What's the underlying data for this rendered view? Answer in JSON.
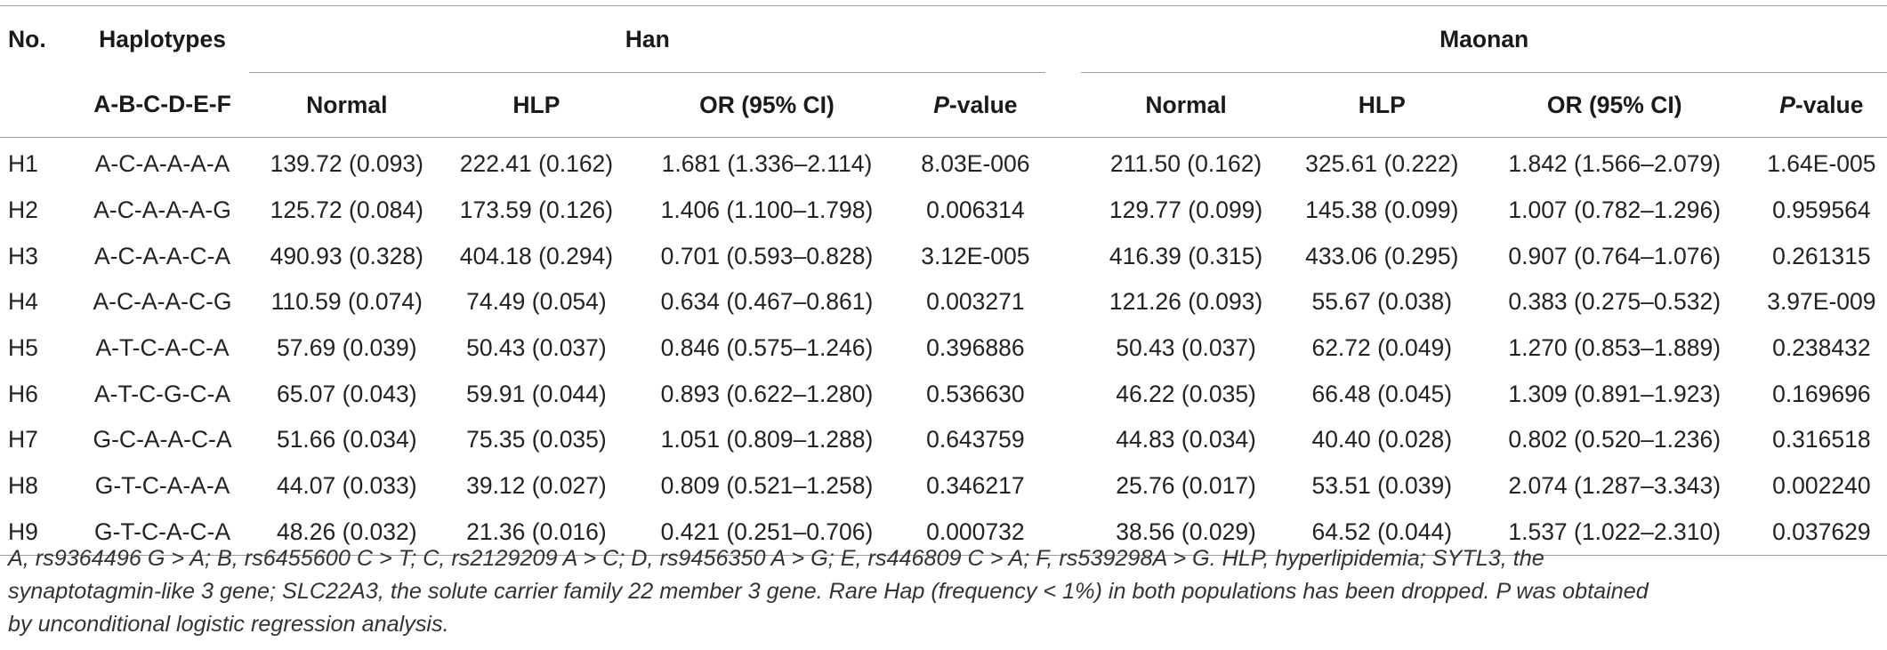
{
  "header": {
    "no_label": "No.",
    "haplotypes_label": "Haplotypes",
    "haplotype_order": "A-B-C-D-E-F",
    "groups": [
      "Han",
      "Maonan"
    ],
    "sub_columns": {
      "normal": "Normal",
      "hlp": "HLP",
      "or": "OR (95% CI)",
      "p_italic": "P",
      "p_rest": "-value"
    }
  },
  "rows": [
    {
      "no": "H1",
      "hap": "A-C-A-A-A-A",
      "han_normal": "139.72 (0.093)",
      "han_hlp": "222.41 (0.162)",
      "han_or": "1.681 (1.336–2.114)",
      "han_p": "8.03E-006",
      "mao_normal": "211.50 (0.162)",
      "mao_hlp": "325.61 (0.222)",
      "mao_or": "1.842 (1.566–2.079)",
      "mao_p": "1.64E-005"
    },
    {
      "no": "H2",
      "hap": "A-C-A-A-A-G",
      "han_normal": "125.72 (0.084)",
      "han_hlp": "173.59 (0.126)",
      "han_or": "1.406 (1.100–1.798)",
      "han_p": "0.006314",
      "mao_normal": "129.77 (0.099)",
      "mao_hlp": "145.38 (0.099)",
      "mao_or": "1.007 (0.782–1.296)",
      "mao_p": "0.959564"
    },
    {
      "no": "H3",
      "hap": "A-C-A-A-C-A",
      "han_normal": "490.93 (0.328)",
      "han_hlp": "404.18 (0.294)",
      "han_or": "0.701 (0.593–0.828)",
      "han_p": "3.12E-005",
      "mao_normal": "416.39 (0.315)",
      "mao_hlp": "433.06 (0.295)",
      "mao_or": "0.907 (0.764–1.076)",
      "mao_p": "0.261315"
    },
    {
      "no": "H4",
      "hap": "A-C-A-A-C-G",
      "han_normal": "110.59 (0.074)",
      "han_hlp": "74.49 (0.054)",
      "han_or": "0.634 (0.467–0.861)",
      "han_p": "0.003271",
      "mao_normal": "121.26 (0.093)",
      "mao_hlp": "55.67 (0.038)",
      "mao_or": "0.383 (0.275–0.532)",
      "mao_p": "3.97E-009"
    },
    {
      "no": "H5",
      "hap": "A-T-C-A-C-A",
      "han_normal": "57.69 (0.039)",
      "han_hlp": "50.43 (0.037)",
      "han_or": "0.846 (0.575–1.246)",
      "han_p": "0.396886",
      "mao_normal": "50.43 (0.037)",
      "mao_hlp": "62.72 (0.049)",
      "mao_or": "1.270 (0.853–1.889)",
      "mao_p": "0.238432"
    },
    {
      "no": "H6",
      "hap": "A-T-C-G-C-A",
      "han_normal": "65.07 (0.043)",
      "han_hlp": "59.91 (0.044)",
      "han_or": "0.893 (0.622–1.280)",
      "han_p": "0.536630",
      "mao_normal": "46.22 (0.035)",
      "mao_hlp": "66.48 (0.045)",
      "mao_or": "1.309 (0.891–1.923)",
      "mao_p": "0.169696"
    },
    {
      "no": "H7",
      "hap": "G-C-A-A-C-A",
      "han_normal": "51.66 (0.034)",
      "han_hlp": "75.35 (0.035)",
      "han_or": "1.051 (0.809–1.288)",
      "han_p": "0.643759",
      "mao_normal": "44.83 (0.034)",
      "mao_hlp": "40.40 (0.028)",
      "mao_or": "0.802 (0.520–1.236)",
      "mao_p": "0.316518"
    },
    {
      "no": "H8",
      "hap": "G-T-C-A-A-A",
      "han_normal": "44.07 (0.033)",
      "han_hlp": "39.12 (0.027)",
      "han_or": "0.809 (0.521–1.258)",
      "han_p": "0.346217",
      "mao_normal": "25.76 (0.017)",
      "mao_hlp": "53.51 (0.039)",
      "mao_or": "2.074 (1.287–3.343)",
      "mao_p": "0.002240"
    },
    {
      "no": "H9",
      "hap": "G-T-C-A-C-A",
      "han_normal": "48.26 (0.032)",
      "han_hlp": "21.36 (0.016)",
      "han_or": "0.421 (0.251–0.706)",
      "han_p": "0.000732",
      "mao_normal": "38.56 (0.029)",
      "mao_hlp": "64.52 (0.044)",
      "mao_or": "1.537 (1.022–2.310)",
      "mao_p": "0.037629"
    }
  ],
  "footnote": {
    "line1": "A, rs9364496 G > A; B, rs6455600 C > T; C, rs2129209 A > C; D, rs9456350 A > G; E, rs446809 C > A; F, rs539298A > G. HLP, hyperlipidemia; SYTL3, the",
    "line2": "synaptotagmin-like 3 gene; SLC22A3, the solute carrier family 22 member 3 gene. Rare Hap (frequency < 1%) in both populations has been dropped. P was obtained",
    "line3": "by unconditional logistic regression analysis."
  }
}
